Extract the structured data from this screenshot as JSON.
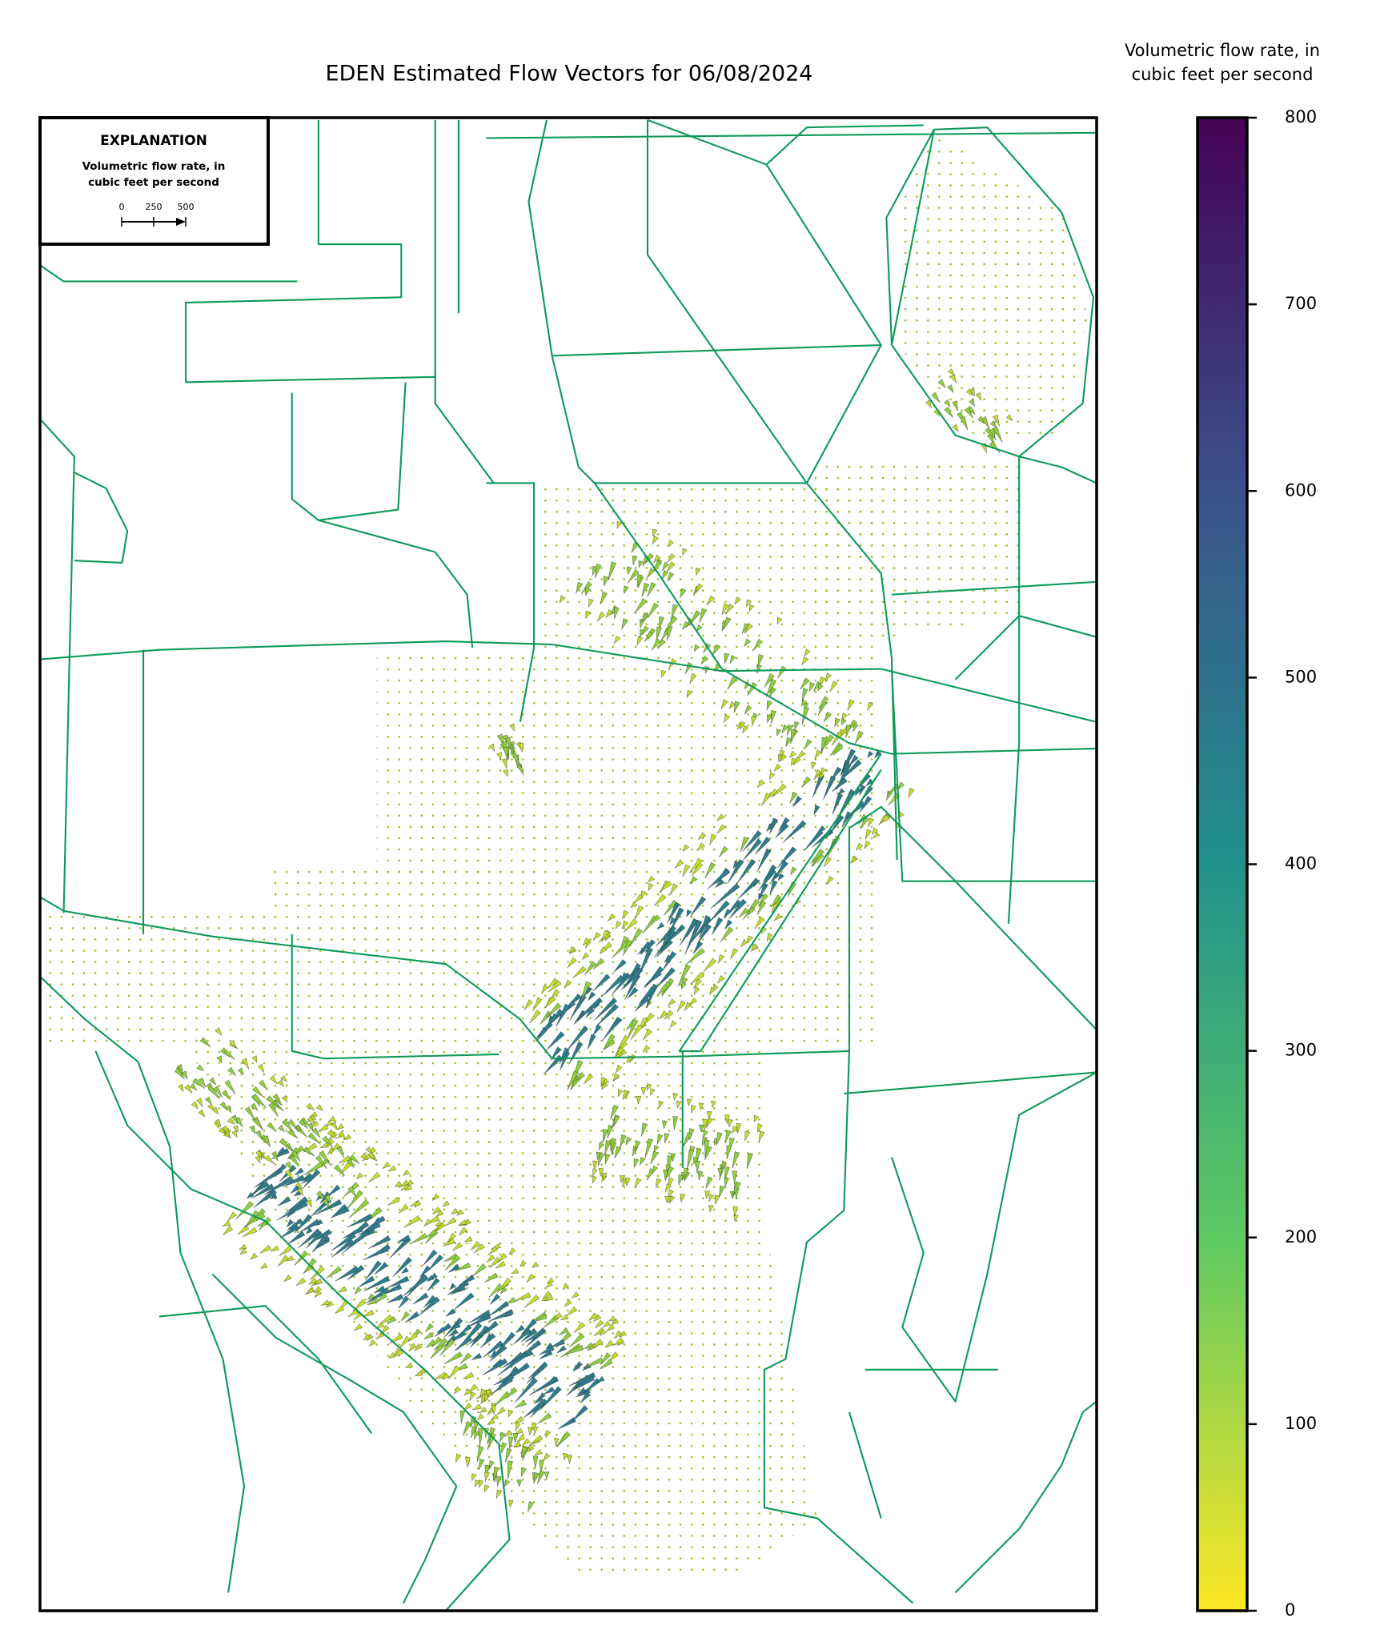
{
  "chart_data": {
    "type": "quiver",
    "title": "EDEN Estimated Flow Vectors for 06/08/2024",
    "colorbar": {
      "label": [
        "Volumetric flow rate, in",
        "cubic feet per second"
      ],
      "lim": [
        0,
        800
      ],
      "ticks": [
        0,
        100,
        200,
        300,
        400,
        500,
        600,
        700,
        800
      ],
      "colors": [
        "#fde725",
        "#5ec962",
        "#21918c",
        "#3b528b",
        "#440154"
      ]
    },
    "legend": {
      "title": "EXPLANATION",
      "label": [
        "Volumetric flow rate, in",
        "cubic feet per second"
      ],
      "scale_ticks": [
        0,
        250,
        500
      ]
    }
  }
}
